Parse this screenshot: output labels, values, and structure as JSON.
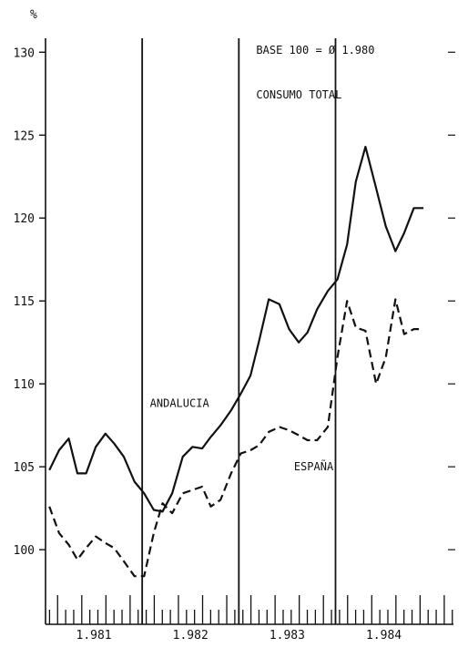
{
  "chart_data": {
    "type": "line",
    "ylabel": "%",
    "ylim": [
      95.5,
      131.5
    ],
    "xlim": [
      1980.5,
      1984.72
    ],
    "y_ticks": [
      100,
      105,
      110,
      115,
      120,
      125,
      130
    ],
    "y_tick_labels": [
      "100",
      "105",
      "110",
      "115",
      "120",
      "125",
      "130"
    ],
    "x_year_labels": [
      {
        "x": 1981,
        "label": "1.981"
      },
      {
        "x": 1982,
        "label": "1.982"
      },
      {
        "x": 1983,
        "label": "1.983"
      },
      {
        "x": 1984,
        "label": "1.984"
      }
    ],
    "year_dividers": [
      1981.5,
      1982.5,
      1983.5
    ],
    "grid": false,
    "annotations": [
      {
        "text": "BASE 100 = Ø 1.980",
        "x": 1982.68,
        "y": 129.9
      },
      {
        "text": "CONSUMO TOTAL",
        "x": 1982.68,
        "y": 127.2
      },
      {
        "text": "ANDALUCIA",
        "x": 1981.58,
        "y": 108.6
      },
      {
        "text": "ESPAÑA",
        "x": 1983.07,
        "y": 104.8
      }
    ],
    "series": [
      {
        "name": "ANDALUCIA",
        "style": "solid",
        "x": [
          1980.54,
          1980.64,
          1980.74,
          1980.83,
          1980.92,
          1981.02,
          1981.12,
          1981.21,
          1981.31,
          1981.42,
          1981.52,
          1981.62,
          1981.71,
          1981.81,
          1981.92,
          1982.02,
          1982.12,
          1982.21,
          1982.31,
          1982.42,
          1982.52,
          1982.62,
          1982.71,
          1982.81,
          1982.92,
          1983.02,
          1983.12,
          1983.21,
          1983.31,
          1983.42,
          1983.52,
          1983.62,
          1983.71,
          1983.81,
          1983.92,
          1984.02,
          1984.12,
          1984.21,
          1984.31,
          1984.41
        ],
        "y": [
          104.8,
          106.0,
          106.7,
          104.6,
          104.6,
          106.2,
          107.0,
          106.4,
          105.6,
          104.1,
          103.4,
          102.4,
          102.3,
          103.4,
          105.6,
          106.2,
          106.1,
          106.8,
          107.5,
          108.4,
          109.4,
          110.5,
          112.6,
          115.1,
          114.8,
          113.3,
          112.5,
          113.1,
          114.5,
          115.6,
          116.3,
          118.4,
          122.2,
          124.3,
          121.8,
          119.5,
          118.0,
          119.1,
          120.6,
          120.6
        ]
      },
      {
        "name": "ESPAÑA",
        "style": "dashed",
        "x": [
          1980.54,
          1980.64,
          1980.74,
          1980.83,
          1980.92,
          1981.02,
          1981.12,
          1981.21,
          1981.31,
          1981.42,
          1981.52,
          1981.62,
          1981.71,
          1981.81,
          1981.92,
          1982.02,
          1982.12,
          1982.21,
          1982.31,
          1982.42,
          1982.52,
          1982.62,
          1982.71,
          1982.81,
          1982.92,
          1983.02,
          1983.12,
          1983.21,
          1983.31,
          1983.42,
          1983.52,
          1983.62,
          1983.71,
          1983.81,
          1983.92,
          1984.02,
          1984.12,
          1984.21,
          1984.31,
          1984.41
        ],
        "y": [
          102.6,
          101.0,
          100.3,
          99.4,
          100.1,
          100.8,
          100.4,
          100.1,
          99.3,
          98.4,
          98.4,
          101.0,
          102.8,
          102.2,
          103.4,
          103.6,
          103.8,
          102.6,
          103.0,
          104.6,
          105.8,
          106.0,
          106.3,
          107.1,
          107.4,
          107.2,
          106.9,
          106.6,
          106.6,
          107.4,
          111.6,
          115.0,
          113.4,
          113.2,
          110.0,
          111.6,
          115.1,
          113.0,
          113.3,
          113.3
        ]
      }
    ]
  }
}
